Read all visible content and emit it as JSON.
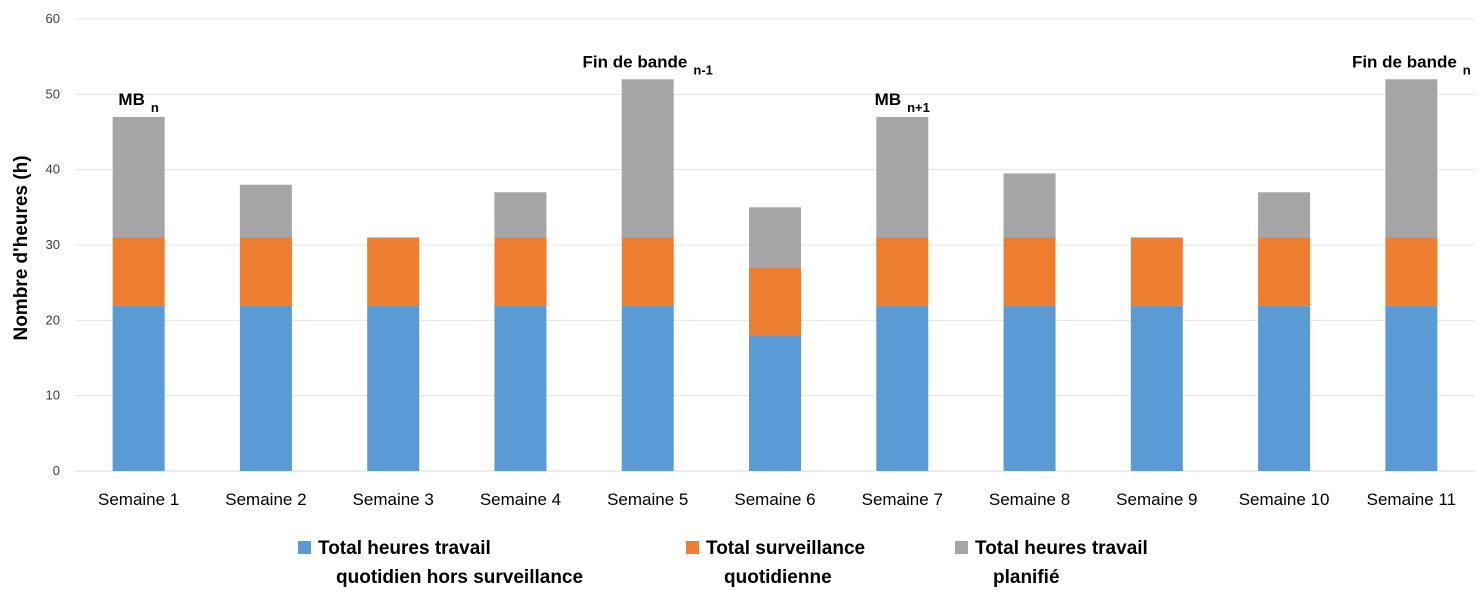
{
  "chart_data": {
    "type": "bar",
    "stacked": true,
    "categories": [
      "Semaine 1",
      "Semaine 2",
      "Semaine 3",
      "Semaine 4",
      "Semaine 5",
      "Semaine 6",
      "Semaine 7",
      "Semaine 8",
      "Semaine 9",
      "Semaine 10",
      "Semaine 11"
    ],
    "series": [
      {
        "name": "Total heures travail quotidien hors surveillance",
        "legend_lines": [
          "Total heures travail",
          "quotidien hors surveillance"
        ],
        "color": "#5B9BD5",
        "values": [
          22,
          22,
          22,
          22,
          22,
          18,
          22,
          22,
          22,
          22,
          22
        ]
      },
      {
        "name": "Total surveillance quotidienne",
        "legend_lines": [
          "Total surveillance",
          "quotidienne"
        ],
        "color": "#ED7D31",
        "values": [
          9,
          9,
          9,
          9,
          9,
          9,
          9,
          9,
          9,
          9,
          9
        ]
      },
      {
        "name": "Total heures travail planifié",
        "legend_lines": [
          "Total heures travail",
          "planifié"
        ],
        "color": "#A5A5A5",
        "values": [
          16,
          7,
          0,
          6,
          21,
          8,
          16,
          8.5,
          0,
          6,
          21
        ]
      }
    ],
    "title": "",
    "xlabel": "",
    "ylabel": "Nombre d'heures (h)",
    "ylim": [
      0,
      60
    ],
    "yticks": [
      0,
      10,
      20,
      30,
      40,
      50,
      60
    ],
    "grid": true,
    "legend_position": "bottom",
    "annotations": [
      {
        "category": "Semaine 1",
        "value": 47,
        "text": "MB",
        "sub": "n"
      },
      {
        "category": "Semaine 5",
        "value": 52,
        "text": "Fin de bande",
        "sub": "n-1"
      },
      {
        "category": "Semaine 7",
        "value": 47,
        "text": "MB",
        "sub": "n+1"
      },
      {
        "category": "Semaine 11",
        "value": 52,
        "text": "Fin de bande",
        "sub": "n"
      }
    ]
  }
}
